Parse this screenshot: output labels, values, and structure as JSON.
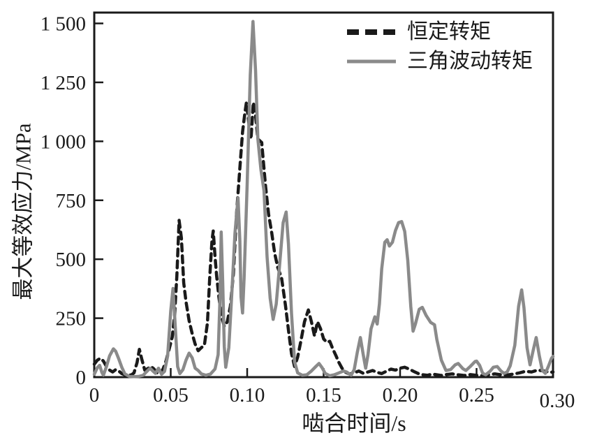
{
  "figure": {
    "background": "#ffffff",
    "frame_color": "#1a1a1a",
    "tick_label_color": "#1a1a1a"
  },
  "chart_data": {
    "type": "line",
    "title": "",
    "xlabel": "啮合时间/s",
    "ylabel": "最大等效应力/MPa",
    "xlim": [
      0,
      0.3
    ],
    "ylim": [
      0,
      1546
    ],
    "grid": false,
    "legend_position": "top-right-inside",
    "xticks": {
      "values": [
        0,
        0.05,
        0.1,
        0.15,
        0.2,
        0.25,
        0.3
      ],
      "labels": [
        "0",
        "0.05",
        "0.10",
        "0.15",
        "0.20",
        "0.25",
        "0.30"
      ]
    },
    "yticks": {
      "values": [
        0,
        250,
        500,
        750,
        1000,
        1250,
        1500
      ],
      "labels": [
        "0",
        "250",
        "500",
        "750",
        "1 000",
        "1 250",
        "1 500"
      ]
    },
    "series": [
      {
        "name": "恒定转矩",
        "line": "dashed",
        "color": "#1a1a1a",
        "points": [
          [
            0.0,
            55
          ],
          [
            0.002,
            72
          ],
          [
            0.004,
            80
          ],
          [
            0.006,
            68
          ],
          [
            0.008,
            45
          ],
          [
            0.01,
            30
          ],
          [
            0.012,
            22
          ],
          [
            0.014,
            32
          ],
          [
            0.016,
            26
          ],
          [
            0.018,
            15
          ],
          [
            0.02,
            10
          ],
          [
            0.022,
            13
          ],
          [
            0.024,
            8
          ],
          [
            0.026,
            18
          ],
          [
            0.028,
            62
          ],
          [
            0.0295,
            118
          ],
          [
            0.031,
            78
          ],
          [
            0.033,
            30
          ],
          [
            0.035,
            36
          ],
          [
            0.037,
            46
          ],
          [
            0.039,
            35
          ],
          [
            0.041,
            18
          ],
          [
            0.043,
            14
          ],
          [
            0.045,
            35
          ],
          [
            0.047,
            70
          ],
          [
            0.049,
            120
          ],
          [
            0.051,
            170
          ],
          [
            0.0525,
            260
          ],
          [
            0.054,
            430
          ],
          [
            0.0555,
            665
          ],
          [
            0.057,
            590
          ],
          [
            0.0585,
            400
          ],
          [
            0.06,
            320
          ],
          [
            0.062,
            240
          ],
          [
            0.064,
            185
          ],
          [
            0.066,
            140
          ],
          [
            0.068,
            112
          ],
          [
            0.07,
            125
          ],
          [
            0.072,
            135
          ],
          [
            0.074,
            230
          ],
          [
            0.0755,
            420
          ],
          [
            0.077,
            580
          ],
          [
            0.0778,
            620
          ],
          [
            0.079,
            510
          ],
          [
            0.08,
            430
          ],
          [
            0.0815,
            340
          ],
          [
            0.083,
            265
          ],
          [
            0.085,
            215
          ],
          [
            0.087,
            235
          ],
          [
            0.089,
            300
          ],
          [
            0.091,
            440
          ],
          [
            0.093,
            690
          ],
          [
            0.095,
            870
          ],
          [
            0.097,
            1040
          ],
          [
            0.0985,
            1120
          ],
          [
            0.0995,
            1165
          ],
          [
            0.101,
            1080
          ],
          [
            0.1025,
            1010
          ],
          [
            0.104,
            1165
          ],
          [
            0.1055,
            1110
          ],
          [
            0.107,
            1010
          ],
          [
            0.1095,
            995
          ],
          [
            0.112,
            810
          ],
          [
            0.114,
            690
          ],
          [
            0.116,
            615
          ],
          [
            0.118,
            525
          ],
          [
            0.12,
            465
          ],
          [
            0.1225,
            420
          ],
          [
            0.125,
            305
          ],
          [
            0.127,
            200
          ],
          [
            0.129,
            100
          ],
          [
            0.131,
            45
          ],
          [
            0.133,
            85
          ],
          [
            0.135,
            150
          ],
          [
            0.1375,
            235
          ],
          [
            0.14,
            285
          ],
          [
            0.142,
            235
          ],
          [
            0.144,
            175
          ],
          [
            0.146,
            235
          ],
          [
            0.148,
            205
          ],
          [
            0.15,
            162
          ],
          [
            0.152,
            148
          ],
          [
            0.154,
            152
          ],
          [
            0.156,
            120
          ],
          [
            0.158,
            92
          ],
          [
            0.16,
            62
          ],
          [
            0.162,
            38
          ],
          [
            0.164,
            22
          ],
          [
            0.167,
            13
          ],
          [
            0.17,
            18
          ],
          [
            0.173,
            26
          ],
          [
            0.176,
            16
          ],
          [
            0.179,
            22
          ],
          [
            0.182,
            28
          ],
          [
            0.185,
            20
          ],
          [
            0.188,
            15
          ],
          [
            0.191,
            25
          ],
          [
            0.194,
            34
          ],
          [
            0.197,
            30
          ],
          [
            0.2,
            38
          ],
          [
            0.203,
            42
          ],
          [
            0.206,
            34
          ],
          [
            0.209,
            24
          ],
          [
            0.212,
            15
          ],
          [
            0.215,
            10
          ],
          [
            0.218,
            8
          ],
          [
            0.221,
            13
          ],
          [
            0.224,
            10
          ],
          [
            0.227,
            7
          ],
          [
            0.23,
            11
          ],
          [
            0.234,
            14
          ],
          [
            0.238,
            10
          ],
          [
            0.242,
            7
          ],
          [
            0.246,
            11
          ],
          [
            0.25,
            8
          ],
          [
            0.254,
            6
          ],
          [
            0.258,
            10
          ],
          [
            0.262,
            14
          ],
          [
            0.266,
            10
          ],
          [
            0.27,
            9
          ],
          [
            0.274,
            13
          ],
          [
            0.278,
            18
          ],
          [
            0.282,
            25
          ],
          [
            0.286,
            22
          ],
          [
            0.29,
            30
          ],
          [
            0.294,
            26
          ],
          [
            0.298,
            20
          ],
          [
            0.3,
            22
          ]
        ]
      },
      {
        "name": "三角波动转矩",
        "line": "solid",
        "color": "#8a8a8a",
        "points": [
          [
            0.0,
            12
          ],
          [
            0.002,
            40
          ],
          [
            0.0035,
            50
          ],
          [
            0.005,
            20
          ],
          [
            0.006,
            8
          ],
          [
            0.008,
            45
          ],
          [
            0.01,
            90
          ],
          [
            0.0125,
            120
          ],
          [
            0.014,
            110
          ],
          [
            0.016,
            78
          ],
          [
            0.018,
            42
          ],
          [
            0.02,
            14
          ],
          [
            0.023,
            3
          ],
          [
            0.026,
            2
          ],
          [
            0.029,
            3
          ],
          [
            0.032,
            8
          ],
          [
            0.034,
            22
          ],
          [
            0.0365,
            38
          ],
          [
            0.038,
            28
          ],
          [
            0.04,
            16
          ],
          [
            0.042,
            38
          ],
          [
            0.044,
            12
          ],
          [
            0.046,
            25
          ],
          [
            0.048,
            90
          ],
          [
            0.05,
            280
          ],
          [
            0.0515,
            376
          ],
          [
            0.053,
            210
          ],
          [
            0.0545,
            45
          ],
          [
            0.056,
            15
          ],
          [
            0.058,
            32
          ],
          [
            0.06,
            72
          ],
          [
            0.062,
            102
          ],
          [
            0.064,
            82
          ],
          [
            0.066,
            38
          ],
          [
            0.068,
            28
          ],
          [
            0.07,
            14
          ],
          [
            0.073,
            8
          ],
          [
            0.076,
            13
          ],
          [
            0.079,
            35
          ],
          [
            0.081,
            95
          ],
          [
            0.0822,
            330
          ],
          [
            0.083,
            615
          ],
          [
            0.084,
            400
          ],
          [
            0.085,
            130
          ],
          [
            0.086,
            42
          ],
          [
            0.088,
            125
          ],
          [
            0.09,
            360
          ],
          [
            0.092,
            610
          ],
          [
            0.094,
            760
          ],
          [
            0.0952,
            580
          ],
          [
            0.096,
            340
          ],
          [
            0.097,
            272
          ],
          [
            0.098,
            420
          ],
          [
            0.1,
            820
          ],
          [
            0.102,
            1280
          ],
          [
            0.1038,
            1508
          ],
          [
            0.1055,
            1300
          ],
          [
            0.107,
            1010
          ],
          [
            0.109,
            880
          ],
          [
            0.111,
            790
          ],
          [
            0.113,
            510
          ],
          [
            0.115,
            335
          ],
          [
            0.117,
            245
          ],
          [
            0.119,
            310
          ],
          [
            0.121,
            460
          ],
          [
            0.1235,
            655
          ],
          [
            0.1255,
            700
          ],
          [
            0.127,
            565
          ],
          [
            0.129,
            270
          ],
          [
            0.131,
            65
          ],
          [
            0.133,
            18
          ],
          [
            0.136,
            8
          ],
          [
            0.139,
            10
          ],
          [
            0.142,
            26
          ],
          [
            0.145,
            46
          ],
          [
            0.147,
            58
          ],
          [
            0.149,
            40
          ],
          [
            0.151,
            16
          ],
          [
            0.154,
            6
          ],
          [
            0.157,
            10
          ],
          [
            0.16,
            18
          ],
          [
            0.163,
            26
          ],
          [
            0.165,
            22
          ],
          [
            0.168,
            8
          ],
          [
            0.17,
            32
          ],
          [
            0.172,
            105
          ],
          [
            0.174,
            168
          ],
          [
            0.176,
            92
          ],
          [
            0.1775,
            38
          ],
          [
            0.179,
            95
          ],
          [
            0.181,
            205
          ],
          [
            0.1835,
            256
          ],
          [
            0.185,
            225
          ],
          [
            0.1865,
            310
          ],
          [
            0.188,
            460
          ],
          [
            0.19,
            572
          ],
          [
            0.1915,
            583
          ],
          [
            0.193,
            556
          ],
          [
            0.195,
            572
          ],
          [
            0.197,
            622
          ],
          [
            0.199,
            655
          ],
          [
            0.201,
            660
          ],
          [
            0.203,
            618
          ],
          [
            0.205,
            495
          ],
          [
            0.207,
            300
          ],
          [
            0.2085,
            195
          ],
          [
            0.21,
            225
          ],
          [
            0.2125,
            288
          ],
          [
            0.2145,
            296
          ],
          [
            0.217,
            262
          ],
          [
            0.22,
            232
          ],
          [
            0.2225,
            222
          ],
          [
            0.224,
            160
          ],
          [
            0.227,
            72
          ],
          [
            0.23,
            28
          ],
          [
            0.233,
            32
          ],
          [
            0.236,
            52
          ],
          [
            0.238,
            58
          ],
          [
            0.241,
            36
          ],
          [
            0.243,
            28
          ],
          [
            0.246,
            46
          ],
          [
            0.249,
            66
          ],
          [
            0.25,
            68
          ],
          [
            0.252,
            50
          ],
          [
            0.254,
            16
          ],
          [
            0.256,
            10
          ],
          [
            0.259,
            26
          ],
          [
            0.261,
            42
          ],
          [
            0.2635,
            45
          ],
          [
            0.266,
            26
          ],
          [
            0.268,
            16
          ],
          [
            0.27,
            22
          ],
          [
            0.272,
            48
          ],
          [
            0.275,
            135
          ],
          [
            0.2775,
            300
          ],
          [
            0.2795,
            370
          ],
          [
            0.281,
            295
          ],
          [
            0.283,
            125
          ],
          [
            0.285,
            52
          ],
          [
            0.287,
            112
          ],
          [
            0.289,
            168
          ],
          [
            0.291,
            92
          ],
          [
            0.293,
            28
          ],
          [
            0.295,
            16
          ],
          [
            0.297,
            46
          ],
          [
            0.299,
            80
          ],
          [
            0.3,
            88
          ]
        ]
      }
    ]
  }
}
